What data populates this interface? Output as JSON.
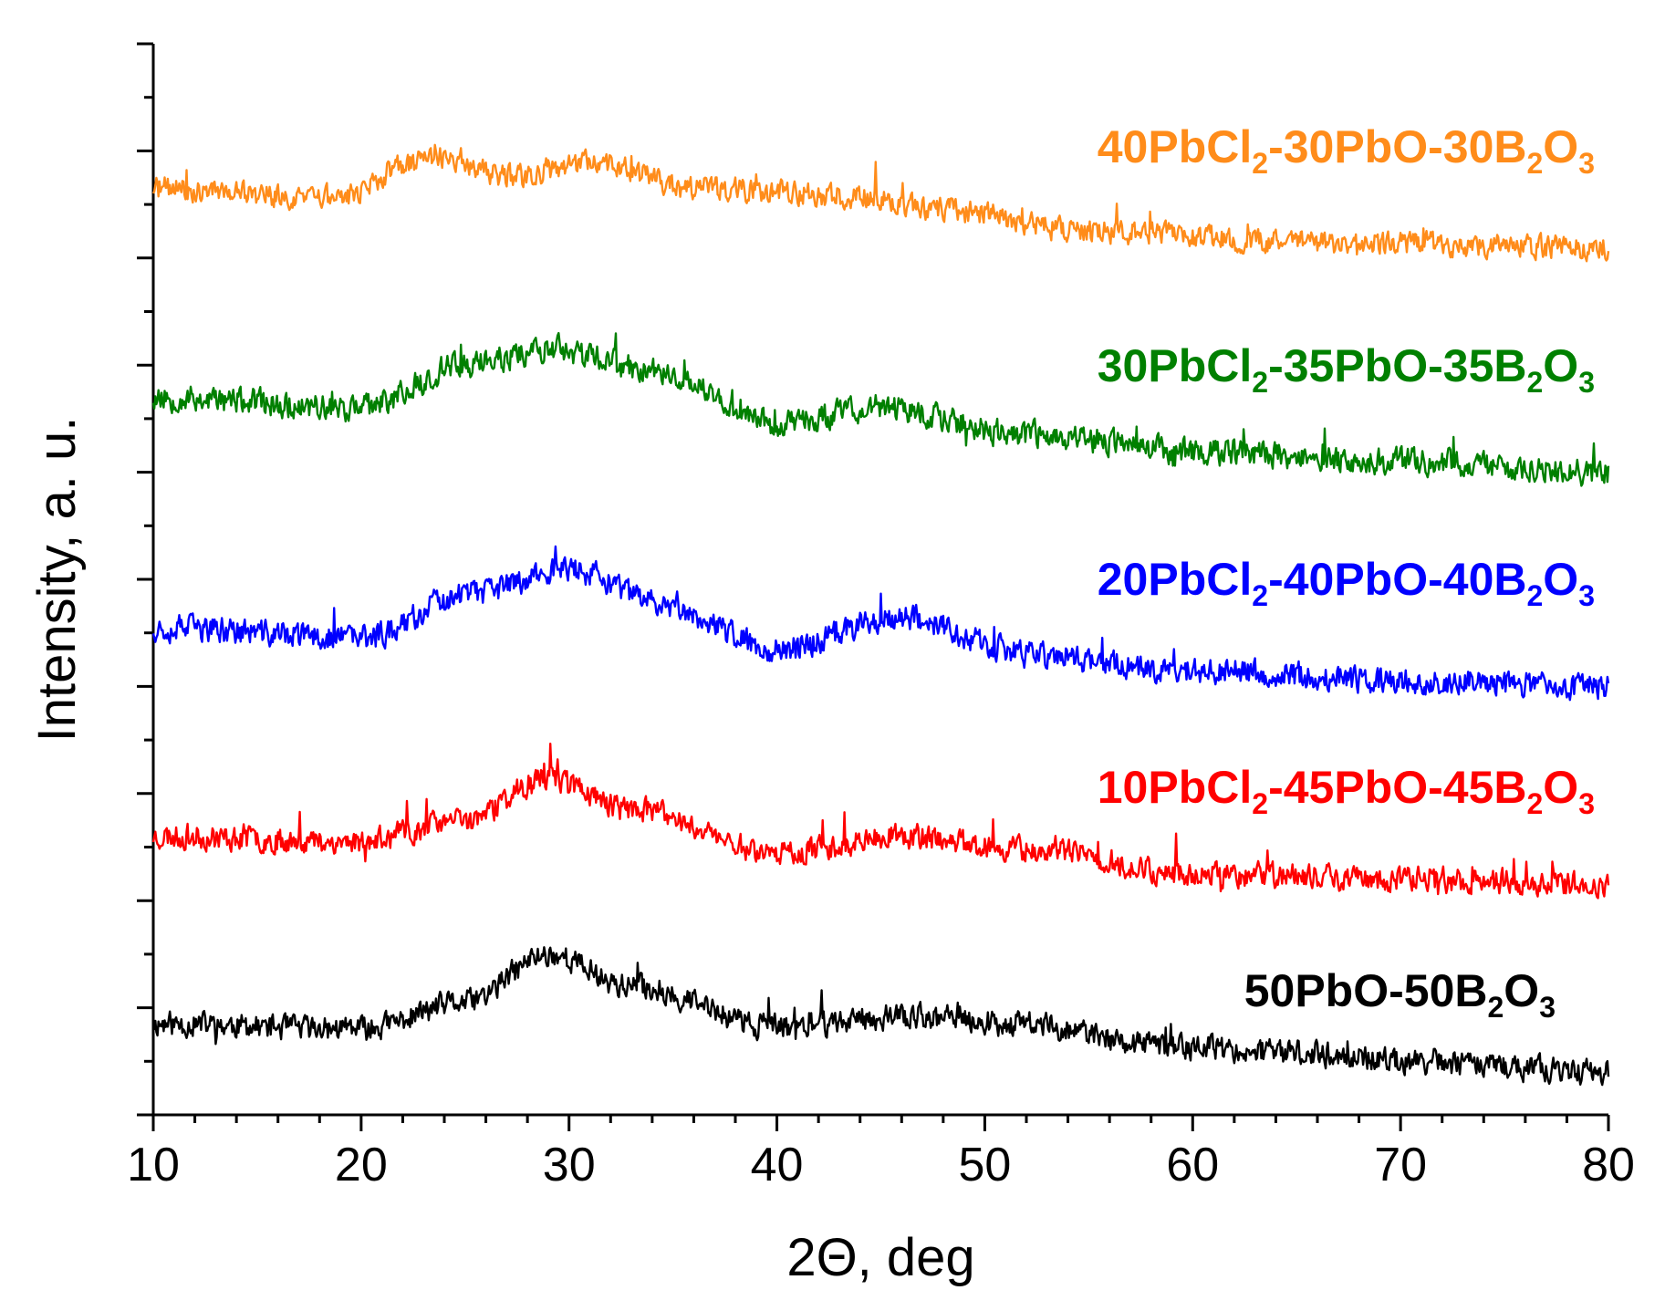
{
  "chart_data": {
    "type": "line",
    "title": "",
    "xlabel": "2Θ, deg",
    "ylabel": "Intensity, a. u.",
    "xlim": [
      10,
      80
    ],
    "xticks": [
      "10",
      "20",
      "30",
      "40",
      "50",
      "60",
      "70",
      "80"
    ],
    "ylim": [
      0,
      100
    ],
    "y_ticks_labeled": false,
    "legend": "inline text labels at right, above each trace",
    "series": [
      {
        "name": "50PbO-50B2O3",
        "label_parts": [
          "50PbO-50B",
          "2",
          "O",
          "3"
        ],
        "color": "#000000",
        "baseline": 8.5,
        "noise": 1.6,
        "seed": 11,
        "profile": [
          [
            10,
            8.5
          ],
          [
            20,
            8.0
          ],
          [
            25,
            10.5
          ],
          [
            29,
            15.0
          ],
          [
            33,
            12.0
          ],
          [
            40,
            8.2
          ],
          [
            46,
            9.2
          ],
          [
            52,
            8.5
          ],
          [
            58,
            6.5
          ],
          [
            65,
            5.8
          ],
          [
            70,
            5.0
          ],
          [
            80,
            4.0
          ]
        ]
      },
      {
        "name": "10PbCl2-45PbO-45B2O3",
        "label_parts": [
          "10PbCl",
          "2",
          "-45PbO-45B",
          "2",
          "O",
          "3"
        ],
        "color": "#ff0000",
        "baseline": 26.0,
        "noise": 1.6,
        "seed": 23,
        "profile": [
          [
            10,
            26.0
          ],
          [
            20,
            25.5
          ],
          [
            25,
            27.5
          ],
          [
            29,
            31.5
          ],
          [
            33,
            28.5
          ],
          [
            40,
            24.5
          ],
          [
            46,
            26.0
          ],
          [
            52,
            24.8
          ],
          [
            60,
            22.5
          ],
          [
            70,
            22.0
          ],
          [
            80,
            21.5
          ]
        ]
      },
      {
        "name": "20PbCl2-40PbO-40B2O3",
        "label_parts": [
          "20PbCl",
          "2",
          "-40PbO-40B",
          "2",
          "O",
          "3"
        ],
        "color": "#0000ff",
        "baseline": 45.5,
        "noise": 1.7,
        "seed": 37,
        "profile": [
          [
            10,
            45.5
          ],
          [
            20,
            44.5
          ],
          [
            25,
            48.5
          ],
          [
            30,
            51.0
          ],
          [
            34,
            48.0
          ],
          [
            40,
            43.5
          ],
          [
            46,
            46.5
          ],
          [
            52,
            43.0
          ],
          [
            60,
            41.5
          ],
          [
            70,
            40.5
          ],
          [
            80,
            40.0
          ]
        ]
      },
      {
        "name": "30PbCl2-35PbO-35B2O3",
        "label_parts": [
          "30PbCl",
          "2",
          "-35PbO-35B",
          "2",
          "O",
          "3"
        ],
        "color": "#008000",
        "baseline": 67.0,
        "noise": 1.7,
        "seed": 53,
        "profile": [
          [
            10,
            67.0
          ],
          [
            20,
            66.0
          ],
          [
            25,
            70.0
          ],
          [
            29,
            71.5
          ],
          [
            34,
            69.5
          ],
          [
            40,
            64.5
          ],
          [
            45,
            66.0
          ],
          [
            52,
            63.5
          ],
          [
            60,
            62.0
          ],
          [
            70,
            61.0
          ],
          [
            80,
            60.0
          ]
        ]
      },
      {
        "name": "40PbCl2-30PbO-30B2O3",
        "label_parts": [
          "40PbCl",
          "2",
          "-30PbO-30B",
          "2",
          "O",
          "3"
        ],
        "color": "#ff8c1a",
        "baseline": 86.5,
        "noise": 1.5,
        "seed": 71,
        "profile": [
          [
            10,
            86.5
          ],
          [
            19,
            85.5
          ],
          [
            22,
            88.5
          ],
          [
            24,
            89.5
          ],
          [
            27,
            87.5
          ],
          [
            31,
            89.0
          ],
          [
            36,
            86.5
          ],
          [
            44,
            85.8
          ],
          [
            48,
            84.5
          ],
          [
            55,
            82.5
          ],
          [
            65,
            81.5
          ],
          [
            80,
            81.0
          ]
        ]
      }
    ]
  }
}
